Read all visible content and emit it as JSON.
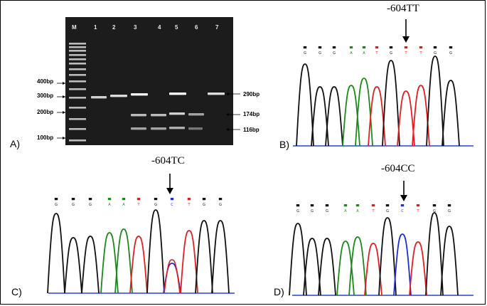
{
  "panels": {
    "a": {
      "label": "A)",
      "lanes": [
        "M",
        "1",
        "2",
        "3",
        "4",
        "5",
        "6",
        "7"
      ],
      "ladder_labels": [
        "400bp",
        "300bp",
        "200bp",
        "100bp"
      ],
      "band_labels": [
        "290bp",
        "174bp",
        "116bp"
      ]
    },
    "b": {
      "label": "B)",
      "title": "-604TT",
      "bases": [
        "G",
        "G",
        "G",
        "A",
        "A",
        "T",
        "G",
        "T",
        "T",
        "G",
        "G"
      ]
    },
    "c": {
      "label": "C)",
      "title": "-604TC",
      "bases": [
        "G",
        "G",
        "G",
        "A",
        "A",
        "T",
        "G",
        "C",
        "T",
        "G",
        "G"
      ]
    },
    "d": {
      "label": "D)",
      "title": "-604CC",
      "bases": [
        "G",
        "G",
        "G",
        "A",
        "A",
        "T",
        "G",
        "C",
        "T",
        "G",
        "G"
      ]
    }
  },
  "colors": {
    "A": "#1a8a1a",
    "T": "#e02020",
    "G": "#111111",
    "C": "#1a2fd8",
    "baseline": "#2244dd"
  }
}
